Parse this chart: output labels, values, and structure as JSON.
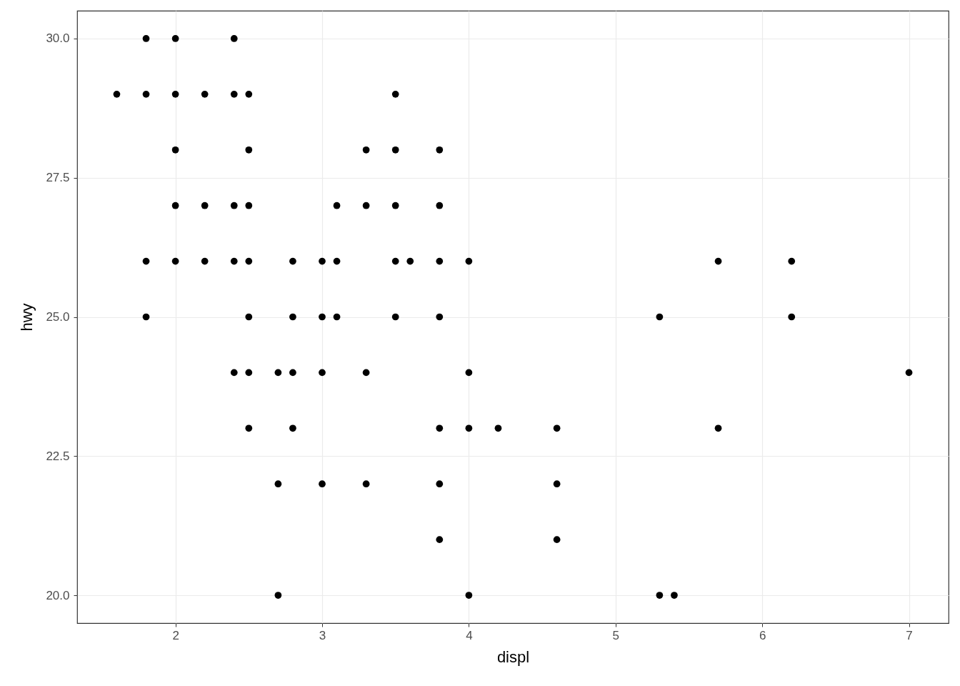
{
  "chart_data": {
    "type": "scatter",
    "xlabel": "displ",
    "ylabel": "hwy",
    "x": [
      1.8,
      2.0,
      2.4,
      1.6,
      1.8,
      2.0,
      2.2,
      2.4,
      2.5,
      3.5,
      2.0,
      2.5,
      3.3,
      3.5,
      3.8,
      2.0,
      2.2,
      2.4,
      2.5,
      3.1,
      3.3,
      3.5,
      3.8,
      1.8,
      2.0,
      2.2,
      2.4,
      2.5,
      2.8,
      3.0,
      3.1,
      3.5,
      3.6,
      3.8,
      4.0,
      5.7,
      6.2,
      1.8,
      2.5,
      2.8,
      3.0,
      3.1,
      3.5,
      3.8,
      5.3,
      6.2,
      2.4,
      2.5,
      2.7,
      2.8,
      3.0,
      3.3,
      4.0,
      7.0,
      2.5,
      2.8,
      3.8,
      4.0,
      4.2,
      4.6,
      5.7,
      2.7,
      3.0,
      3.3,
      3.8,
      4.6,
      3.8,
      4.6,
      2.7,
      4.0,
      5.3,
      5.4
    ],
    "series": [
      {
        "color": "#000000",
        "values": [
          30,
          30,
          30,
          29,
          29,
          29,
          29,
          29,
          29,
          29,
          28,
          28,
          28,
          28,
          28,
          27,
          27,
          27,
          27,
          27,
          27,
          27,
          27,
          26,
          26,
          26,
          26,
          26,
          26,
          26,
          26,
          26,
          26,
          26,
          26,
          26,
          26,
          25,
          25,
          25,
          25,
          25,
          25,
          25,
          25,
          25,
          24,
          24,
          24,
          24,
          24,
          24,
          24,
          24,
          23,
          23,
          23,
          23,
          23,
          23,
          23,
          22,
          22,
          22,
          22,
          22,
          21,
          21,
          20,
          20,
          20,
          20
        ]
      }
    ],
    "xlim": [
      1.33,
      7.27
    ],
    "ylim": [
      19.5,
      30.5
    ],
    "xticks": [
      2,
      3,
      4,
      5,
      6,
      7
    ],
    "yticks": [
      {
        "value": 20,
        "label": "20.0"
      },
      {
        "value": 22.5,
        "label": "22.5"
      },
      {
        "value": 25,
        "label": "25.0"
      },
      {
        "value": 27.5,
        "label": "27.5"
      },
      {
        "value": 30,
        "label": "30.0"
      }
    ],
    "grid": true,
    "marker": "circle"
  }
}
